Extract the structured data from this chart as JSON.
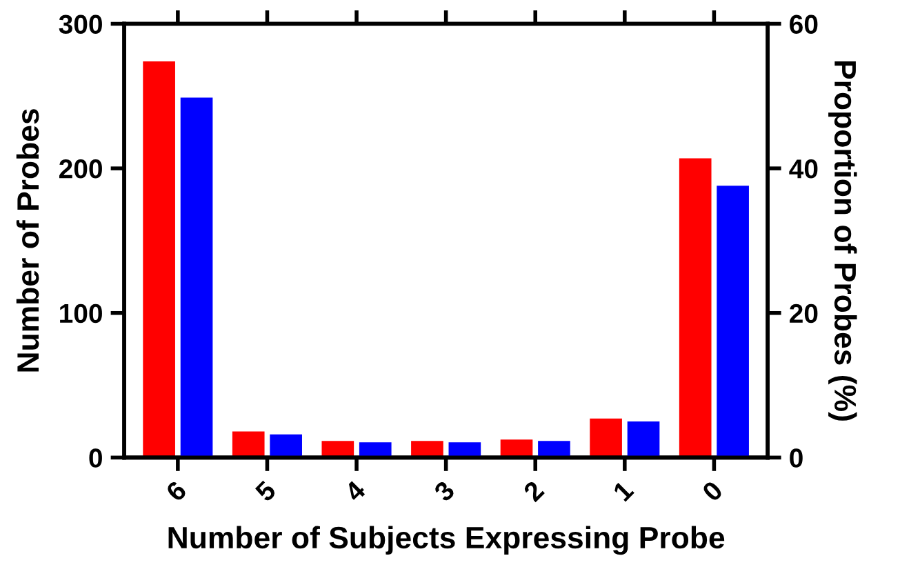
{
  "chart_data": {
    "type": "bar",
    "xlabel": "Number of Subjects Expressing Probe",
    "ylabel": "Number of Probes",
    "y2label": "Proportion of Probes (%)",
    "categories": [
      "6",
      "5",
      "4",
      "3",
      "2",
      "1",
      "0"
    ],
    "series": [
      {
        "color": "#ff0000",
        "values": [
          274,
          18,
          11.5,
          11.5,
          12.4,
          27,
          207
        ]
      },
      {
        "color": "#0000ff",
        "axis": "y2",
        "values": [
          49.8,
          3.2,
          2.1,
          2.1,
          2.3,
          5.0,
          37.6
        ]
      }
    ],
    "ylim": [
      0,
      300
    ],
    "yticks": [
      0,
      100,
      200,
      300
    ],
    "y2lim": [
      0,
      60
    ],
    "y2ticks": [
      0,
      20,
      40,
      60
    ],
    "grid": false,
    "legend": false
  }
}
